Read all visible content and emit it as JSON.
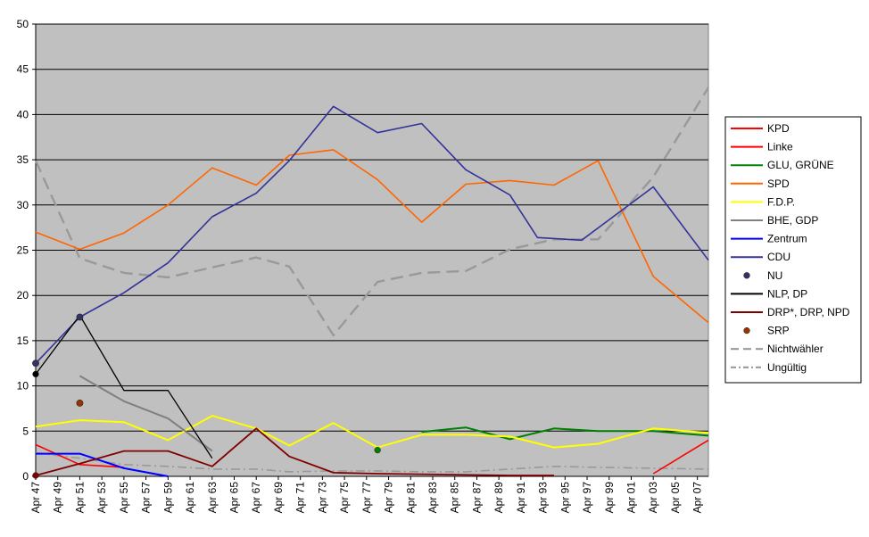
{
  "chart_data": {
    "type": "line",
    "ylim": [
      0,
      50
    ],
    "yticks": [
      0,
      5,
      10,
      15,
      20,
      25,
      30,
      35,
      40,
      45,
      50
    ],
    "grid": true,
    "legend_position": "right",
    "x_start_year": 1947,
    "x_end_year": 2008,
    "xtick_labels": [
      "Apr 47",
      "Apr 49",
      "Apr 51",
      "Apr 53",
      "Apr 55",
      "Apr 57",
      "Apr 59",
      "Apr 61",
      "Apr 63",
      "Apr 65",
      "Apr 67",
      "Apr 69",
      "Apr 71",
      "Apr 73",
      "Apr 75",
      "Apr 77",
      "Apr 79",
      "Apr 81",
      "Apr 83",
      "Apr 85",
      "Apr 87",
      "Apr 89",
      "Apr 91",
      "Apr 93",
      "Apr 95",
      "Apr 97",
      "Apr 99",
      "Apr 01",
      "Apr 03",
      "Apr 05",
      "Apr 07"
    ],
    "series": [
      {
        "name": "KPD",
        "color": "#ff0000",
        "style": "solid",
        "width": 1.6,
        "points": [
          [
            1947,
            3.5
          ],
          [
            1951,
            1.3
          ],
          [
            1955,
            1.0
          ]
        ]
      },
      {
        "name": "Linke",
        "color": "#ff0000",
        "style": "solid",
        "width": 1.6,
        "points": [
          [
            2003,
            0.3
          ],
          [
            2008,
            4.0
          ]
        ]
      },
      {
        "name": "GLU, GRÜNE",
        "color": "#008000",
        "style": "solid",
        "width": 2,
        "points": [
          [
            1982,
            4.9
          ],
          [
            1986,
            5.4
          ],
          [
            1990,
            4.1
          ],
          [
            1994,
            5.3
          ],
          [
            1998,
            5.0
          ],
          [
            2003,
            5.0
          ],
          [
            2008,
            4.5
          ]
        ]
      },
      {
        "name": "SPD",
        "color": "#ff6600",
        "style": "solid",
        "width": 1.6,
        "points": [
          [
            1947,
            27.0
          ],
          [
            1951,
            25.1
          ],
          [
            1955,
            26.9
          ],
          [
            1959,
            30.0
          ],
          [
            1963,
            34.1
          ],
          [
            1967,
            32.2
          ],
          [
            1970,
            35.5
          ],
          [
            1974,
            36.1
          ],
          [
            1978,
            32.8
          ],
          [
            1982,
            28.1
          ],
          [
            1986,
            32.3
          ],
          [
            1990,
            32.7
          ],
          [
            1994,
            32.2
          ],
          [
            1998,
            34.9
          ],
          [
            2003,
            22.1
          ],
          [
            2008,
            17.0
          ]
        ]
      },
      {
        "name": "F.D.P.",
        "color": "#ffff00",
        "style": "solid",
        "width": 2,
        "points": [
          [
            1947,
            5.5
          ],
          [
            1951,
            6.2
          ],
          [
            1955,
            6.0
          ],
          [
            1959,
            4.0
          ],
          [
            1963,
            6.7
          ],
          [
            1967,
            5.3
          ],
          [
            1970,
            3.4
          ],
          [
            1974,
            5.9
          ],
          [
            1978,
            3.2
          ],
          [
            1982,
            4.6
          ],
          [
            1986,
            4.6
          ],
          [
            1990,
            4.4
          ],
          [
            1994,
            3.2
          ],
          [
            1998,
            3.6
          ],
          [
            2003,
            5.3
          ],
          [
            2008,
            4.8
          ]
        ]
      },
      {
        "name": "BHE, GDP",
        "color": "#808080",
        "style": "solid",
        "width": 2,
        "points": [
          [
            1951,
            11.1
          ],
          [
            1955,
            8.3
          ],
          [
            1959,
            6.4
          ],
          [
            1963,
            2.8
          ]
        ]
      },
      {
        "name": "Zentrum",
        "color": "#0000ff",
        "style": "solid",
        "width": 2,
        "points": [
          [
            1947,
            2.5
          ],
          [
            1951,
            2.5
          ],
          [
            1955,
            0.9
          ],
          [
            1959,
            0.0
          ]
        ]
      },
      {
        "name": "CDU",
        "color": "#333399",
        "style": "solid",
        "width": 1.6,
        "points": [
          [
            1947,
            12.5
          ],
          [
            1951,
            17.6
          ],
          [
            1955,
            20.3
          ],
          [
            1959,
            23.6
          ],
          [
            1963,
            28.7
          ],
          [
            1967,
            31.3
          ],
          [
            1970,
            34.9
          ],
          [
            1974,
            40.9
          ],
          [
            1978,
            38.0
          ],
          [
            1982,
            39.0
          ],
          [
            1986,
            33.9
          ],
          [
            1990,
            31.1
          ],
          [
            1992.5,
            26.4
          ],
          [
            1996.5,
            26.1
          ],
          [
            2003,
            32.0
          ],
          [
            2008,
            23.9
          ]
        ]
      },
      {
        "name": "NLP, DP",
        "color": "#000000",
        "style": "solid",
        "width": 1.3,
        "points": [
          [
            1947,
            11.3
          ],
          [
            1951,
            17.8
          ],
          [
            1955,
            9.5
          ],
          [
            1959,
            9.5
          ],
          [
            1963,
            2.0
          ]
        ]
      },
      {
        "name": "DRP*, DRP, NPD",
        "color": "#800000",
        "style": "solid",
        "width": 1.8,
        "points": [
          [
            1947,
            0.1
          ],
          [
            1951,
            1.4
          ],
          [
            1955,
            2.8
          ],
          [
            1959,
            2.8
          ],
          [
            1963,
            1.1
          ],
          [
            1967,
            5.3
          ],
          [
            1970,
            2.2
          ],
          [
            1974,
            0.4
          ],
          [
            1978,
            0.3
          ],
          [
            1990,
            0.1
          ],
          [
            1994,
            0.1
          ]
        ]
      },
      {
        "name": "Nichtwähler",
        "color": "#999999",
        "style": "dash",
        "width": 2.4,
        "points": [
          [
            1947,
            34.9
          ],
          [
            1951,
            24.1
          ],
          [
            1955,
            22.5
          ],
          [
            1959,
            22.0
          ],
          [
            1963,
            23.1
          ],
          [
            1967,
            24.2
          ],
          [
            1970,
            23.2
          ],
          [
            1974,
            15.6
          ],
          [
            1978,
            21.5
          ],
          [
            1982,
            22.5
          ],
          [
            1986,
            22.7
          ],
          [
            1990,
            25.1
          ],
          [
            1994,
            26.2
          ],
          [
            1998,
            26.2
          ],
          [
            2003,
            33.1
          ],
          [
            2008,
            43.0
          ]
        ]
      },
      {
        "name": "Ungültig",
        "color": "#999999",
        "style": "dashdot",
        "width": 1.6,
        "points": [
          [
            1947,
            2.6
          ],
          [
            1951,
            2.0
          ],
          [
            1955,
            1.3
          ],
          [
            1959,
            1.1
          ],
          [
            1963,
            0.8
          ],
          [
            1967,
            0.8
          ],
          [
            1970,
            0.5
          ],
          [
            1974,
            0.6
          ],
          [
            1978,
            0.6
          ],
          [
            1982,
            0.5
          ],
          [
            1986,
            0.5
          ],
          [
            1990,
            0.8
          ],
          [
            1994,
            1.1
          ],
          [
            1998,
            1.0
          ],
          [
            2003,
            0.9
          ],
          [
            2008,
            0.8
          ]
        ]
      }
    ],
    "markers": [
      {
        "name": "NU",
        "color": "#333366",
        "points": [
          [
            1947,
            12.5
          ],
          [
            1951,
            17.6
          ]
        ]
      },
      {
        "name": "SRP",
        "color": "#993300",
        "points": [
          [
            1951,
            8.1
          ]
        ]
      }
    ],
    "extra_markers": [
      {
        "color": "#000000",
        "points": [
          [
            1947,
            11.3
          ]
        ]
      },
      {
        "color": "#800000",
        "points": [
          [
            1947,
            0.1
          ]
        ]
      },
      {
        "color": "#008000",
        "points": [
          [
            1978,
            2.9
          ]
        ]
      }
    ],
    "legend": [
      {
        "label": "KPD",
        "kind": "line",
        "color": "#ff0000",
        "style": "solid"
      },
      {
        "label": "Linke",
        "kind": "line",
        "color": "#ff0000",
        "style": "solid"
      },
      {
        "label": "GLU, GRÜNE",
        "kind": "line",
        "color": "#008000",
        "style": "solid"
      },
      {
        "label": "SPD",
        "kind": "line",
        "color": "#ff6600",
        "style": "solid"
      },
      {
        "label": "F.D.P.",
        "kind": "line",
        "color": "#ffff00",
        "style": "solid"
      },
      {
        "label": "BHE, GDP",
        "kind": "line",
        "color": "#808080",
        "style": "solid"
      },
      {
        "label": "Zentrum",
        "kind": "line",
        "color": "#0000ff",
        "style": "solid"
      },
      {
        "label": "CDU",
        "kind": "line",
        "color": "#333399",
        "style": "solid"
      },
      {
        "label": "NU",
        "kind": "marker",
        "color": "#333366"
      },
      {
        "label": "NLP, DP",
        "kind": "line",
        "color": "#000000",
        "style": "solid"
      },
      {
        "label": "DRP*, DRP, NPD",
        "kind": "line",
        "color": "#800000",
        "style": "solid"
      },
      {
        "label": "SRP",
        "kind": "marker",
        "color": "#993300"
      },
      {
        "label": "Nichtwähler",
        "kind": "line",
        "color": "#999999",
        "style": "dash"
      },
      {
        "label": "Ungültig",
        "kind": "line",
        "color": "#999999",
        "style": "dashdot"
      }
    ],
    "colors": {
      "plot_background": "#c0c0c0",
      "grid": "#000000",
      "page_background": "#ffffff"
    }
  }
}
